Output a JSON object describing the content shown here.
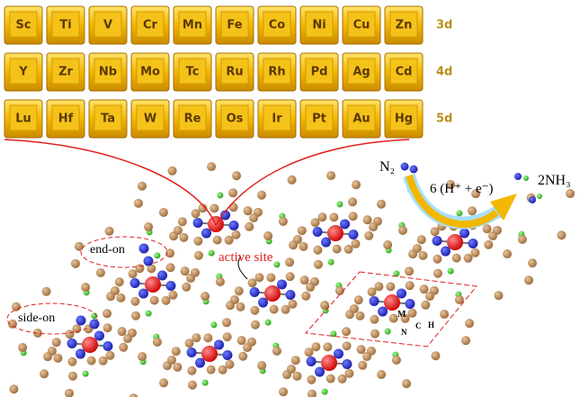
{
  "table": {
    "rows": [
      {
        "elements": [
          "Sc",
          "Ti",
          "V",
          "Cr",
          "Mn",
          "Fe",
          "Co",
          "Ni",
          "Cu",
          "Zn"
        ],
        "label": "3d"
      },
      {
        "elements": [
          "Y",
          "Zr",
          "Nb",
          "Mo",
          "Tc",
          "Ru",
          "Rh",
          "Pd",
          "Ag",
          "Cd"
        ],
        "label": "4d"
      },
      {
        "elements": [
          "Lu",
          "Hf",
          "Ta",
          "W",
          "Re",
          "Os",
          "Ir",
          "Pt",
          "Au",
          "Hg"
        ],
        "label": "5d"
      }
    ]
  },
  "reaction": {
    "reactant": "N₂",
    "condition": "6 (H⁺ + e⁻)",
    "product": "2NH₃"
  },
  "annotations": {
    "end_on": "end-on",
    "side_on": "side-on",
    "active_site": "active site"
  },
  "atom_labels": {
    "metal": "M",
    "nitrogen": "N",
    "carbon": "C",
    "hydrogen": "H"
  }
}
